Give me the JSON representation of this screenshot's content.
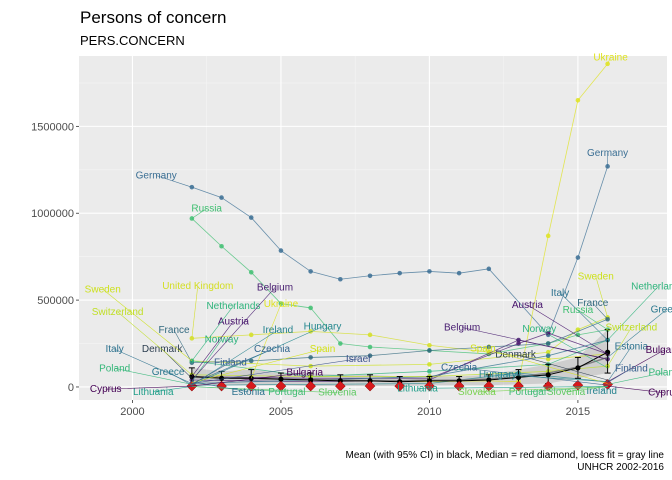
{
  "chart_data": {
    "type": "line",
    "title": "Persons of concern",
    "subtitle": "PERS.CONCERN",
    "xlabel": "",
    "ylabel": "",
    "caption_line1": "Mean (with 95% CI) in black, Median = red diamond, loess fit = gray line",
    "caption_line2": "UNHCR 2002-2016",
    "xlim": [
      1998.2,
      2018.0
    ],
    "ylim": [
      -75000,
      1905000
    ],
    "x_ticks": [
      2000,
      2005,
      2010,
      2015
    ],
    "x_tick_labels": [
      "2000",
      "2005",
      "2010",
      "2015"
    ],
    "y_ticks": [
      0,
      500000,
      1000000,
      1500000
    ],
    "y_tick_labels": [
      "0",
      "500000",
      "1000000",
      "1500000"
    ],
    "grid": true,
    "legend": "none",
    "series": [
      {
        "name": "Germany",
        "color": "#3b6f94",
        "x": [
          2002,
          2003,
          2004,
          2005,
          2006,
          2007,
          2008,
          2009,
          2010,
          2011,
          2012,
          2014,
          2015,
          2016
        ],
        "y": [
          1150000,
          1090000,
          975000,
          785000,
          665000,
          620000,
          640000,
          655000,
          665000,
          655000,
          680000,
          300000,
          745000,
          1270000
        ]
      },
      {
        "name": "Russia",
        "color": "#3fbf71",
        "x": [
          2002,
          2003,
          2004,
          2005,
          2006,
          2007,
          2008,
          2010,
          2012,
          2014,
          2015,
          2016
        ],
        "y": [
          970000,
          810000,
          660000,
          480000,
          455000,
          250000,
          230000,
          210000,
          190000,
          250000,
          300000,
          330000
        ]
      },
      {
        "name": "Ukraine",
        "color": "#dfe31d",
        "x": [
          2002,
          2004,
          2006,
          2008,
          2010,
          2012,
          2013,
          2014,
          2015,
          2016
        ],
        "y": [
          60000,
          50000,
          40000,
          35000,
          30000,
          35000,
          30000,
          870000,
          1650000,
          1860000
        ]
      },
      {
        "name": "United Kingdom",
        "color": "#d3de22",
        "x": [
          2002,
          2004,
          2006,
          2008,
          2010,
          2012,
          2014,
          2016
        ],
        "y": [
          280000,
          300000,
          320000,
          300000,
          240000,
          200000,
          160000,
          190000
        ]
      },
      {
        "name": "Sweden",
        "color": "#cde11d",
        "x": [
          2002,
          2006,
          2010,
          2014,
          2015,
          2016
        ],
        "y": [
          150000,
          120000,
          130000,
          200000,
          330000,
          400000
        ]
      },
      {
        "name": "Belgium",
        "color": "#461b6f",
        "x": [
          2002,
          2006,
          2010,
          2013,
          2016
        ],
        "y": [
          40000,
          30000,
          40000,
          270000,
          160000
        ]
      },
      {
        "name": "Austria",
        "color": "#46136b",
        "x": [
          2002,
          2006,
          2010,
          2013,
          2014,
          2016
        ],
        "y": [
          60000,
          50000,
          50000,
          250000,
          310000,
          190000
        ]
      },
      {
        "name": "France",
        "color": "#30687e",
        "x": [
          2002,
          2004,
          2006,
          2008,
          2010,
          2012,
          2014,
          2016
        ],
        "y": [
          140000,
          150000,
          170000,
          180000,
          210000,
          230000,
          250000,
          390000
        ]
      },
      {
        "name": "Netherlands",
        "color": "#2fb47c",
        "x": [
          2002,
          2006,
          2010,
          2014,
          2016
        ],
        "y": [
          150000,
          60000,
          90000,
          130000,
          270000
        ]
      },
      {
        "name": "Italy",
        "color": "#2c718e",
        "x": [
          2002,
          2006,
          2010,
          2014,
          2016
        ],
        "y": [
          20000,
          40000,
          60000,
          180000,
          270000
        ]
      },
      {
        "name": "Switzerland",
        "color": "#c0df25",
        "x": [
          2002,
          2006,
          2010,
          2014,
          2016
        ],
        "y": [
          70000,
          60000,
          60000,
          90000,
          120000
        ]
      },
      {
        "name": "Hungary",
        "color": "#24878e",
        "x": [
          2002,
          2006,
          2010,
          2013,
          2016
        ],
        "y": [
          10000,
          15000,
          20000,
          80000,
          30000
        ]
      }
    ],
    "stats": {
      "x": [
        2002,
        2003,
        2004,
        2005,
        2006,
        2007,
        2008,
        2009,
        2010,
        2011,
        2012,
        2013,
        2014,
        2015,
        2016
      ],
      "mean": [
        60000,
        50000,
        50000,
        45000,
        40000,
        35000,
        35000,
        30000,
        35000,
        35000,
        40000,
        55000,
        70000,
        110000,
        200000
      ],
      "ci_low": [
        10000,
        15000,
        10000,
        10000,
        5000,
        5000,
        5000,
        5000,
        10000,
        10000,
        10000,
        15000,
        20000,
        50000,
        80000
      ],
      "ci_high": [
        110000,
        90000,
        100000,
        80000,
        80000,
        70000,
        70000,
        60000,
        60000,
        60000,
        70000,
        100000,
        130000,
        170000,
        330000
      ],
      "median": [
        5000,
        5000,
        5000,
        5000,
        5000,
        5000,
        5000,
        5000,
        5000,
        5000,
        5000,
        5000,
        5000,
        10000,
        15000
      ],
      "loess": [
        55000,
        52000,
        49000,
        45000,
        42000,
        39000,
        37000,
        36000,
        38000,
        40000,
        46000,
        58000,
        80000,
        115000,
        170000
      ]
    },
    "annotations": [
      {
        "text": "Ukraine",
        "x": 2016.1,
        "y": 1880000,
        "color": "#dfe31d",
        "ax": 2016,
        "ay": 1860000
      },
      {
        "text": "Germany",
        "x": 2016.0,
        "y": 1330000,
        "color": "#3b6f94",
        "ax": 2016,
        "ay": 1270000
      },
      {
        "text": "Germany",
        "x": 2000.8,
        "y": 1200000,
        "color": "#3b6f94",
        "ax": 2002,
        "ay": 1150000
      },
      {
        "text": "Russia",
        "x": 2002.5,
        "y": 1010000,
        "color": "#3fbf71",
        "ax": 2002,
        "ay": 970000
      },
      {
        "text": "Sweden",
        "x": 2015.6,
        "y": 620000,
        "color": "#cde11d",
        "ax": 2016,
        "ay": 400000
      },
      {
        "text": "Netherlands",
        "x": 2017.7,
        "y": 560000,
        "color": "#2fb47c",
        "ax": 2016,
        "ay": 270000
      },
      {
        "text": "Italy",
        "x": 2014.4,
        "y": 525000,
        "color": "#2c718e",
        "ax": 2016,
        "ay": 270000
      },
      {
        "text": "Greece",
        "x": 2018.0,
        "y": 430000,
        "color": "#2a788e",
        "ax": 2016,
        "ay": 170000
      },
      {
        "text": "France",
        "x": 2015.5,
        "y": 465000,
        "color": "#30687e",
        "ax": 2016,
        "ay": 390000
      },
      {
        "text": "Russia",
        "x": 2015.0,
        "y": 425000,
        "color": "#3fbf71",
        "ax": 2016,
        "ay": 330000
      },
      {
        "text": "Austria",
        "x": 2013.3,
        "y": 455000,
        "color": "#46136b",
        "ax": 2016,
        "ay": 190000
      },
      {
        "text": "Switzerland",
        "x": 2016.8,
        "y": 325000,
        "color": "#c0df25",
        "ax": 2016,
        "ay": 120000
      },
      {
        "text": "Norway",
        "x": 2013.7,
        "y": 315000,
        "color": "#2db27d",
        "ax": 2016,
        "ay": 110000
      },
      {
        "text": "Belgium",
        "x": 2011.1,
        "y": 325000,
        "color": "#461b6f",
        "ax": 2016,
        "ay": 160000
      },
      {
        "text": "Estonia",
        "x": 2016.8,
        "y": 215000,
        "color": "#2c728e",
        "ax": 2016,
        "ay": 30000
      },
      {
        "text": "Bulgaria",
        "x": 2017.9,
        "y": 195000,
        "color": "#440154",
        "ax": 2016,
        "ay": 30000
      },
      {
        "text": "Denmark",
        "x": 2012.9,
        "y": 170000,
        "color": "#2c3e50",
        "ax": 2016,
        "ay": 40000
      },
      {
        "text": "Spain",
        "x": 2011.8,
        "y": 205000,
        "color": "#d4e21a",
        "ax": 2016,
        "ay": 20000
      },
      {
        "text": "Finland",
        "x": 2016.8,
        "y": 90000,
        "color": "#355f8d",
        "ax": 2016,
        "ay": 25000
      },
      {
        "text": "Poland",
        "x": 2017.9,
        "y": 65000,
        "color": "#35b779",
        "ax": 2016,
        "ay": 15000
      },
      {
        "text": "Czechia",
        "x": 2011.0,
        "y": 95000,
        "color": "#31668e",
        "ax": 2016,
        "ay": 10000
      },
      {
        "text": "Hungary",
        "x": 2012.3,
        "y": 55000,
        "color": "#24878e",
        "ax": 2016,
        "ay": 30000
      },
      {
        "text": "Ireland",
        "x": 2015.8,
        "y": -40000,
        "color": "#26828e",
        "ax": 2016,
        "ay": 8000
      },
      {
        "text": "Cyprus",
        "x": 2017.9,
        "y": -50000,
        "color": "#440154",
        "ax": 2016,
        "ay": 5000
      },
      {
        "text": "Slovenia",
        "x": 2014.6,
        "y": -45000,
        "color": "#5ec962",
        "ax": 2016,
        "ay": 2000
      },
      {
        "text": "Portugal",
        "x": 2013.3,
        "y": -45000,
        "color": "#3fbc73",
        "ax": 2016,
        "ay": 3000
      },
      {
        "text": "Slovakia",
        "x": 2011.6,
        "y": -45000,
        "color": "#7ad151",
        "ax": 2016,
        "ay": 2000
      },
      {
        "text": "Lithuania",
        "x": 2009.6,
        "y": -25000,
        "color": "#1f9e89",
        "ax": 2016,
        "ay": 3000
      },
      {
        "text": "Slovenia",
        "x": 2006.9,
        "y": -50000,
        "color": "#5ec962",
        "ax": 2002,
        "ay": 2000
      },
      {
        "text": "Portugal",
        "x": 2005.2,
        "y": -45000,
        "color": "#3fbc73",
        "ax": 2002,
        "ay": 3000
      },
      {
        "text": "Estonia",
        "x": 2003.9,
        "y": -45000,
        "color": "#2c728e",
        "ax": 2002,
        "ay": 30000
      },
      {
        "text": "Lithuania",
        "x": 2000.7,
        "y": -45000,
        "color": "#1f9e89",
        "ax": 2002,
        "ay": 3000
      },
      {
        "text": "Cyprus",
        "x": 1999.1,
        "y": -30000,
        "color": "#440154",
        "ax": 2002,
        "ay": 5000
      },
      {
        "text": "Poland",
        "x": 1999.4,
        "y": 90000,
        "color": "#35b779",
        "ax": 2002,
        "ay": 15000
      },
      {
        "text": "Greece",
        "x": 2001.2,
        "y": 70000,
        "color": "#2a788e",
        "ax": 2002,
        "ay": 10000
      },
      {
        "text": "Italy",
        "x": 1999.4,
        "y": 200000,
        "color": "#2c718e",
        "ax": 2002,
        "ay": 20000
      },
      {
        "text": "Denmark",
        "x": 2001.0,
        "y": 200000,
        "color": "#2c3e50",
        "ax": 2002,
        "ay": 50000
      },
      {
        "text": "Norway",
        "x": 2003.0,
        "y": 255000,
        "color": "#2db27d",
        "ax": 2002,
        "ay": 30000
      },
      {
        "text": "France",
        "x": 2001.4,
        "y": 310000,
        "color": "#30687e",
        "ax": 2002,
        "ay": 140000
      },
      {
        "text": "Austria",
        "x": 2003.4,
        "y": 360000,
        "color": "#46136b",
        "ax": 2002,
        "ay": 60000
      },
      {
        "text": "Switzerland",
        "x": 1999.5,
        "y": 415000,
        "color": "#c0df25",
        "ax": 2002,
        "ay": 70000
      },
      {
        "text": "Netherlands",
        "x": 2003.4,
        "y": 450000,
        "color": "#2fb47c",
        "ax": 2002,
        "ay": 150000
      },
      {
        "text": "Sweden",
        "x": 1999.0,
        "y": 545000,
        "color": "#cde11d",
        "ax": 2002,
        "ay": 150000
      },
      {
        "text": "United Kingdom",
        "x": 2002.2,
        "y": 565000,
        "color": "#d3de22",
        "ax": 2002,
        "ay": 280000
      },
      {
        "text": "Belgium",
        "x": 2004.8,
        "y": 555000,
        "color": "#461b6f",
        "ax": 2002,
        "ay": 40000
      },
      {
        "text": "Ukraine",
        "x": 2005.0,
        "y": 460000,
        "color": "#dfe31d",
        "ax": 2004,
        "ay": 50000
      },
      {
        "text": "Ireland",
        "x": 2004.9,
        "y": 310000,
        "color": "#26828e",
        "ax": 2002,
        "ay": 10000
      },
      {
        "text": "Hungary",
        "x": 2006.4,
        "y": 330000,
        "color": "#24878e",
        "ax": 2002,
        "ay": 10000
      },
      {
        "text": "Czechia",
        "x": 2004.7,
        "y": 200000,
        "color": "#31668e",
        "ax": 2002,
        "ay": 20000
      },
      {
        "text": "Spain",
        "x": 2006.4,
        "y": 200000,
        "color": "#d4e21a",
        "ax": 2002,
        "ay": 25000
      },
      {
        "text": "Israel",
        "x": 2007.6,
        "y": 145000,
        "color": "#3b528b",
        "ax": 2002,
        "ay": 20000
      },
      {
        "text": "Finland",
        "x": 2003.3,
        "y": 125000,
        "color": "#355f8d",
        "ax": 2002,
        "ay": 15000
      },
      {
        "text": "Bulgaria",
        "x": 2005.8,
        "y": 65000,
        "color": "#440154",
        "ax": 2002,
        "ay": 5000
      }
    ]
  }
}
